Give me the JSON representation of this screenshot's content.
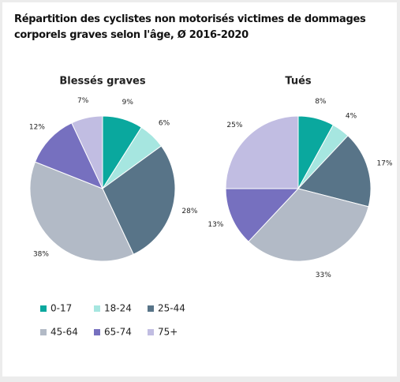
{
  "title": "Répartition des cyclistes non motorisés victimes de dommages corporels graves selon l'âge, Ø 2016-2020",
  "chart_data": [
    {
      "type": "pie",
      "title": "Blessés graves",
      "categories": [
        "0-17",
        "18-24",
        "25-44",
        "45-64",
        "65-74",
        "75+"
      ],
      "values": [
        9,
        6,
        28,
        38,
        12,
        7
      ],
      "value_labels": [
        "9%",
        "6%",
        "28%",
        "38%",
        "12%",
        "7%"
      ],
      "colors": [
        "#0aa89e",
        "#a6e6e0",
        "#587488",
        "#b2bac6",
        "#7670bf",
        "#c1bde2"
      ]
    },
    {
      "type": "pie",
      "title": "Tués",
      "categories": [
        "0-17",
        "18-24",
        "25-44",
        "45-64",
        "65-74",
        "75+"
      ],
      "values": [
        8,
        4,
        17,
        33,
        13,
        25
      ],
      "value_labels": [
        "8%",
        "4%",
        "17%",
        "33%",
        "13%",
        "25%"
      ],
      "colors": [
        "#0aa89e",
        "#a6e6e0",
        "#587488",
        "#b2bac6",
        "#7670bf",
        "#c1bde2"
      ]
    }
  ]
}
